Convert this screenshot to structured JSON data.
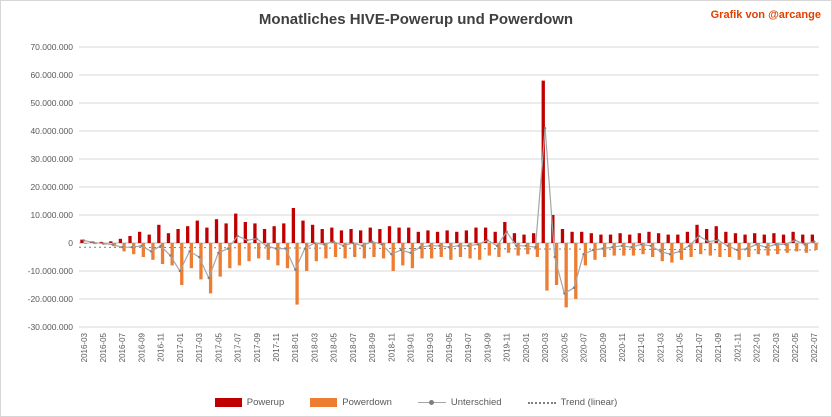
{
  "header": {
    "title": "Monatliches HIVE-Powerup und Powerdown",
    "credit": "Grafik von @arcange"
  },
  "legend": {
    "items": [
      {
        "label": "Powerup"
      },
      {
        "label": "Powerdown"
      },
      {
        "label": "Unterschied"
      },
      {
        "label": "Trend (linear)"
      }
    ]
  },
  "colors": {
    "powerup": "#C00000",
    "powerdown": "#ED7D31",
    "unterschied_line": "#A6A6A6",
    "unterschied_marker": "#7F7F7F",
    "trend": "#7F7F7F",
    "grid": "#D9D9D9",
    "zero_axis": "#BFBFBF",
    "axis_text": "#595959",
    "title_text": "#404040",
    "credit_text": "#E04000"
  },
  "chart_data": {
    "type": "bar",
    "title": "Monatliches HIVE-Powerup und Powerdown",
    "values_in": "millions of HIVE",
    "value_scale": 1000000,
    "grid": true,
    "legend_position": "bottom",
    "ylim": [
      -30,
      70
    ],
    "yticks": [
      70,
      60,
      50,
      40,
      30,
      20,
      10,
      0,
      -10,
      -20,
      -30
    ],
    "ytick_labels": [
      "70.000.000",
      "60.000.000",
      "50.000.000",
      "40.000.000",
      "30.000.000",
      "20.000.000",
      "10.000.000",
      "0",
      "-10.000.000",
      "-20.000.000",
      "-30.000.000"
    ],
    "x_label_every": 2,
    "x": [
      "2016-03",
      "2016-04",
      "2016-05",
      "2016-06",
      "2016-07",
      "2016-08",
      "2016-09",
      "2016-10",
      "2016-11",
      "2016-12",
      "2017-01",
      "2017-02",
      "2017-03",
      "2017-04",
      "2017-05",
      "2017-06",
      "2017-07",
      "2017-08",
      "2017-09",
      "2017-10",
      "2017-11",
      "2017-12",
      "2018-01",
      "2018-02",
      "2018-03",
      "2018-04",
      "2018-05",
      "2018-06",
      "2018-07",
      "2018-08",
      "2018-09",
      "2018-10",
      "2018-11",
      "2018-12",
      "2019-01",
      "2019-02",
      "2019-03",
      "2019-04",
      "2019-05",
      "2019-06",
      "2019-07",
      "2019-08",
      "2019-09",
      "2019-10",
      "2019-11",
      "2019-12",
      "2020-01",
      "2020-02",
      "2020-03",
      "2020-04",
      "2020-05",
      "2020-06",
      "2020-07",
      "2020-08",
      "2020-09",
      "2020-10",
      "2020-11",
      "2020-12",
      "2021-01",
      "2021-02",
      "2021-03",
      "2021-04",
      "2021-05",
      "2021-06",
      "2021-07",
      "2021-08",
      "2021-09",
      "2021-10",
      "2021-11",
      "2021-12",
      "2022-01",
      "2022-02",
      "2022-03",
      "2022-04",
      "2022-05",
      "2022-06",
      "2022-07"
    ],
    "series": [
      {
        "name": "Powerup",
        "type": "bar",
        "values": [
          1.2,
          0.6,
          0.4,
          0.6,
          1.5,
          2.5,
          4,
          3,
          6.5,
          3.5,
          5,
          6,
          8,
          5.5,
          8.5,
          7,
          10.5,
          7.5,
          7,
          5,
          6,
          7,
          12.5,
          8,
          6.5,
          5,
          5.5,
          4.5,
          5,
          4.5,
          5.5,
          5,
          6,
          5.5,
          5.5,
          4,
          4.5,
          4,
          4.5,
          4,
          4.5,
          5.5,
          5.5,
          4,
          7.5,
          3.5,
          3,
          3.5,
          58,
          10,
          5,
          4,
          4,
          3.5,
          3,
          3,
          3.5,
          3,
          3.5,
          4,
          3.5,
          3,
          3,
          4,
          6.5,
          5,
          6,
          4,
          3.5,
          3,
          3.5,
          3,
          3.5,
          3,
          4,
          3,
          3
        ]
      },
      {
        "name": "Powerdown",
        "type": "bar",
        "values": [
          -0.3,
          -0.4,
          -0.6,
          -1.2,
          -3,
          -4,
          -5,
          -6,
          -7.5,
          -8,
          -15,
          -9,
          -13,
          -18,
          -12,
          -9,
          -8,
          -6.5,
          -5.5,
          -6,
          -8,
          -9,
          -22,
          -10,
          -6.5,
          -5.5,
          -5,
          -5.5,
          -5,
          -5.5,
          -5,
          -5.5,
          -10,
          -8,
          -9,
          -5.5,
          -5.5,
          -5,
          -6,
          -5,
          -5.5,
          -6,
          -4.5,
          -5,
          -3.5,
          -4.5,
          -4,
          -5,
          -17,
          -15,
          -23,
          -20,
          -8,
          -6,
          -5,
          -4.5,
          -4.5,
          -4.5,
          -4,
          -5,
          -6.5,
          -7,
          -6,
          -5,
          -4,
          -4.5,
          -5,
          -5,
          -6,
          -5,
          -4,
          -4.5,
          -4,
          -3.5,
          -3,
          -3.5,
          -2.5
        ]
      },
      {
        "name": "Unterschied",
        "type": "line",
        "values": [
          0.9,
          0.2,
          -0.2,
          -0.6,
          -1.5,
          -1.5,
          -1,
          -3,
          -1,
          -4.5,
          -10,
          -3,
          -5,
          -12.5,
          -3.5,
          -2,
          2.5,
          1,
          1.5,
          -1,
          -2,
          -2,
          -9.5,
          -2,
          0,
          -0.5,
          0.5,
          -1,
          0,
          -1,
          0.5,
          -0.5,
          -4,
          -2.5,
          -3.5,
          -1.5,
          -1,
          -1,
          -1.5,
          -1,
          -1,
          -0.5,
          1,
          -1,
          4,
          -1,
          -1,
          -1.5,
          41,
          -5,
          -18,
          -16,
          -4,
          -2.5,
          -2,
          -1.5,
          -1,
          -1.5,
          -0.5,
          -1,
          -3,
          -4,
          -3,
          -1,
          2.5,
          0.5,
          1,
          -1,
          -2.5,
          -2,
          -0.5,
          -1.5,
          -0.5,
          -0.5,
          1,
          -0.5,
          0.5
        ]
      },
      {
        "name": "Trend (linear)",
        "type": "trend",
        "start": -1.5,
        "end": -2.5
      }
    ]
  }
}
